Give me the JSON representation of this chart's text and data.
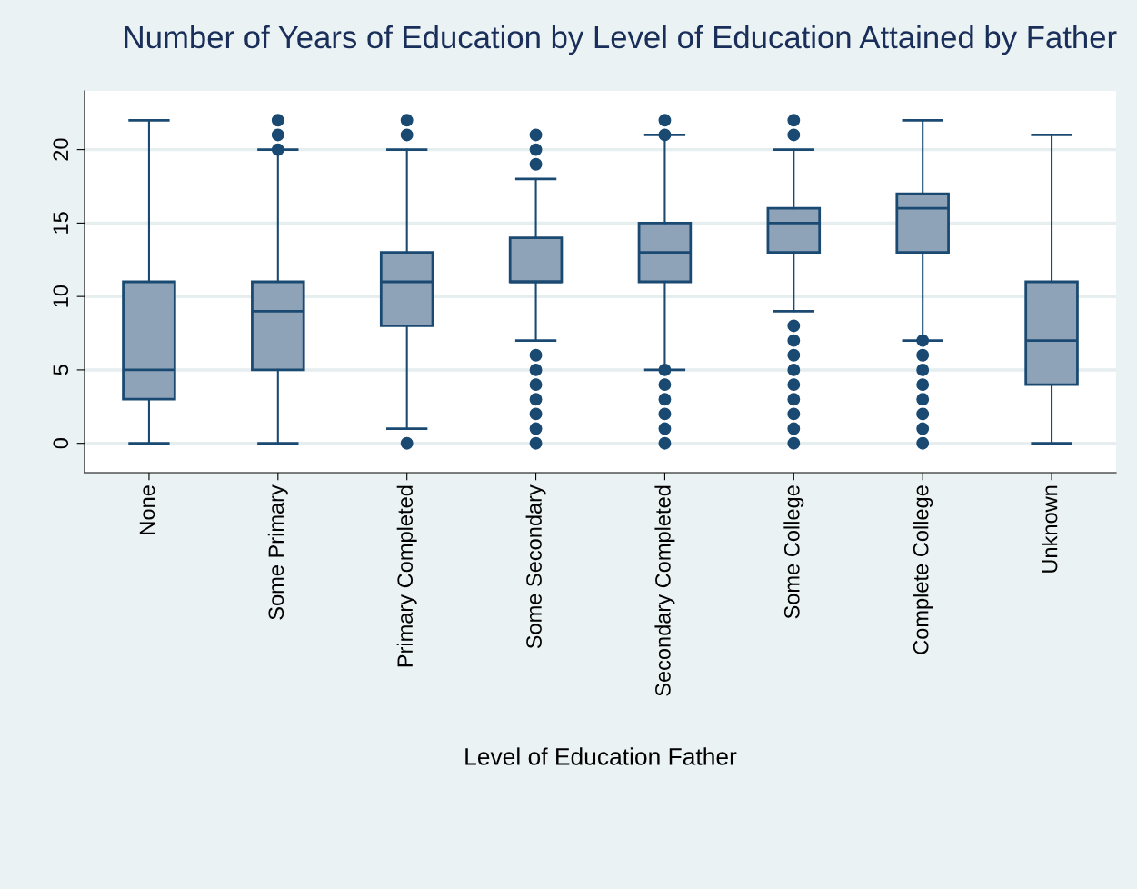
{
  "chart_data": {
    "type": "box",
    "title": "Number of Years of Education by Level of Education Attained by Father",
    "xlabel": "Level of Education Father",
    "categories": [
      "None",
      "Some Primary",
      "Primary Completed",
      "Some Secondary",
      "Secondary Completed",
      "Some College",
      "Complete College",
      "Unknown"
    ],
    "color": "#8ea3b8",
    "boxes": [
      {
        "low": 0,
        "q1": 3,
        "median": 5,
        "q3": 11,
        "high": 22
      },
      {
        "low": 0,
        "q1": 5,
        "median": 9,
        "q3": 11,
        "high": 20,
        "outliers": [
          20,
          21,
          22
        ]
      },
      {
        "low": 1,
        "q1": 8,
        "median": 11,
        "q3": 13,
        "high": 20,
        "outliers": [
          0,
          21,
          22
        ]
      },
      {
        "low": 7,
        "q1": 11,
        "median": 11,
        "q3": 14,
        "high": 18,
        "outliers": [
          0,
          1,
          2,
          3,
          4,
          5,
          6,
          19,
          20,
          21
        ]
      },
      {
        "low": 5,
        "q1": 11,
        "median": 13,
        "q3": 15,
        "high": 21,
        "outliers": [
          0,
          1,
          2,
          3,
          4,
          5,
          21,
          22
        ]
      },
      {
        "low": 9,
        "q1": 13,
        "median": 15,
        "q3": 16,
        "high": 20,
        "outliers": [
          0,
          1,
          2,
          3,
          4,
          5,
          6,
          7,
          8,
          21,
          22
        ]
      },
      {
        "low": 7,
        "q1": 13,
        "median": 16,
        "q3": 17,
        "high": 22,
        "outliers": [
          0,
          1,
          2,
          3,
          4,
          5,
          6,
          7
        ]
      },
      {
        "low": 0,
        "q1": 4,
        "median": 7,
        "q3": 11,
        "high": 21
      }
    ],
    "ylim": [
      -2,
      24
    ],
    "yticks": [
      0,
      5,
      10,
      15,
      20
    ],
    "grid": "y"
  }
}
